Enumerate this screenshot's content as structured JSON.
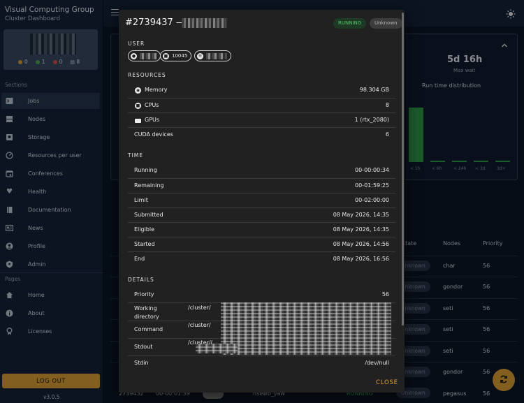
{
  "sidebar": {
    "app_title": "Visual Computing Group",
    "app_subtitle": "Cluster Dashboard",
    "cluster_stats": [
      {
        "color": "#e2a436",
        "value": "0"
      },
      {
        "color": "#4caf50",
        "value": "1"
      },
      {
        "color": "#e05252",
        "value": "0"
      },
      {
        "color": "#e6e6e6",
        "value": "8"
      }
    ],
    "sections_label": "Sections",
    "sections": [
      {
        "label": "Jobs",
        "icon": "terminal-icon",
        "active": true
      },
      {
        "label": "Nodes",
        "icon": "server-icon"
      },
      {
        "label": "Storage",
        "icon": "hard-drive-icon"
      },
      {
        "label": "Resources per user",
        "icon": "gauge-icon"
      },
      {
        "label": "Conferences",
        "icon": "calendar-icon"
      },
      {
        "label": "Health",
        "icon": "heart-pulse-icon"
      },
      {
        "label": "Documentation",
        "icon": "book-icon"
      },
      {
        "label": "News",
        "icon": "newspaper-icon"
      },
      {
        "label": "Profile",
        "icon": "account-icon"
      },
      {
        "label": "Admin",
        "icon": "shield-icon"
      }
    ],
    "pages_label": "Pages",
    "pages": [
      {
        "label": "Home",
        "icon": "home-icon"
      },
      {
        "label": "About",
        "icon": "info-icon"
      },
      {
        "label": "Licenses",
        "icon": "license-icon"
      }
    ],
    "logout_label": "LOG OUT",
    "version": "v3.0.5"
  },
  "background": {
    "max_wait_value": "5d 16h",
    "max_wait_label": "Max wait",
    "chart_title": "Run time distribution",
    "chart_categories": [
      "< 1h",
      "< 6h",
      "< 24h",
      "< 3d",
      "3d+"
    ],
    "chart_values": [
      0.95,
      0.03,
      0.02,
      0.01,
      0.01
    ],
    "table_headers": {
      "state": "State",
      "nodes": "Nodes",
      "priority": "Priority"
    },
    "rows": [
      {
        "state": "Unknown",
        "node": "char",
        "priority": "56"
      },
      {
        "state": "Unknown",
        "node": "gondor",
        "priority": "56"
      },
      {
        "state": "Unknown",
        "node": "seti",
        "priority": "56"
      },
      {
        "state": "Unknown",
        "node": "seti",
        "priority": "56"
      },
      {
        "state": "Unknown",
        "node": "seti",
        "priority": "56"
      },
      {
        "state": "Unknown",
        "node": "gondor",
        "priority": "56"
      },
      {
        "id": "2739432",
        "time": "00-00:01:39",
        "job": "nsewb_yaw",
        "run": "RUNNING",
        "state": "Unknown",
        "node": "pegasus",
        "priority": "56"
      }
    ]
  },
  "dialog": {
    "title_prefix": "#2739437 —",
    "status_chip": "RUNNING",
    "state_chip": "Unknown",
    "user_section": "USER",
    "user_chips": [
      {
        "icon": "account-icon",
        "text": ""
      },
      {
        "icon": "id-card-icon",
        "text": "10045"
      },
      {
        "icon": "group-icon",
        "text": ""
      }
    ],
    "resources_section": "RESOURCES",
    "resources": [
      {
        "label": "Memory",
        "value": "98.304 GB",
        "icon": "memory-icon"
      },
      {
        "label": "CPUs",
        "value": "8",
        "icon": "cpu-icon"
      },
      {
        "label": "GPUs",
        "value": "1 (rtx_2080)",
        "icon": "gpu-icon"
      },
      {
        "label": "CUDA devices",
        "value": "6"
      }
    ],
    "time_section": "TIME",
    "time": [
      {
        "label": "Running",
        "value": "00-00:00:34"
      },
      {
        "label": "Remaining",
        "value": "00-01:59:25"
      },
      {
        "label": "Limit",
        "value": "00-02:00:00"
      },
      {
        "label": "Submitted",
        "value": "08 May 2026, 14:35"
      },
      {
        "label": "Eligible",
        "value": "08 May 2026, 14:35"
      },
      {
        "label": "Started",
        "value": "08 May 2026, 14:56"
      },
      {
        "label": "End",
        "value": "08 May 2026, 16:56"
      }
    ],
    "details_section": "DETAILS",
    "details": [
      {
        "label": "Priority",
        "value": "56"
      },
      {
        "label": "Working directory",
        "value": "/cluster/"
      },
      {
        "label": "Command",
        "value": "/cluster/"
      },
      {
        "label": "Stdout",
        "value": "/cluster/("
      },
      {
        "label": "Stdin",
        "value": "/dev/null"
      }
    ],
    "close_label": "CLOSE"
  }
}
